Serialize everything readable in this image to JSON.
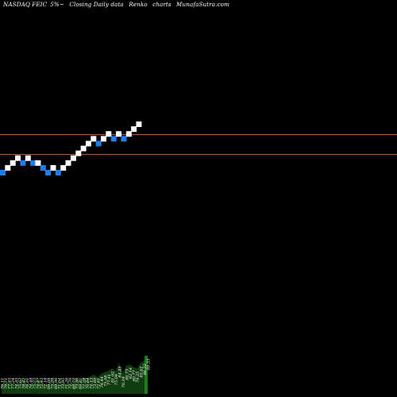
{
  "header": {
    "symbol": "NASDAQ FEIC",
    "change": "5%~",
    "desc": "Closing Daily data",
    "chart_kind": "Renko",
    "suffix": "charts",
    "site": "MunafaSutra.com"
  },
  "colors": {
    "background": "#000000",
    "up_brick": "#ffffff",
    "down_brick": "#1e7df0",
    "ref_line": "#c8642a",
    "volume_fill": "#0f3d0f",
    "volume_highlight": "#1d7a1d",
    "label_text": "#ffffff"
  },
  "chart_data": {
    "type": "renko",
    "title": "NASDAQ FEIC 5%~ Closing Daily data Renko charts MunafaSutra.com",
    "bricks": [
      {
        "dir": "down",
        "level": 0
      },
      {
        "dir": "up",
        "level": 1
      },
      {
        "dir": "up",
        "level": 2
      },
      {
        "dir": "up",
        "level": 3
      },
      {
        "dir": "down",
        "level": 2
      },
      {
        "dir": "up",
        "level": 3
      },
      {
        "dir": "down",
        "level": 2
      },
      {
        "dir": "up",
        "level": 2
      },
      {
        "dir": "down",
        "level": 1
      },
      {
        "dir": "down",
        "level": 0
      },
      {
        "dir": "up",
        "level": 1
      },
      {
        "dir": "down",
        "level": 0
      },
      {
        "dir": "up",
        "level": 1
      },
      {
        "dir": "up",
        "level": 2
      },
      {
        "dir": "up",
        "level": 3
      },
      {
        "dir": "up",
        "level": 4
      },
      {
        "dir": "up",
        "level": 5
      },
      {
        "dir": "up",
        "level": 6
      },
      {
        "dir": "up",
        "level": 7
      },
      {
        "dir": "down",
        "level": 6
      },
      {
        "dir": "up",
        "level": 7
      },
      {
        "dir": "up",
        "level": 8
      },
      {
        "dir": "down",
        "level": 7
      },
      {
        "dir": "up",
        "level": 8
      },
      {
        "dir": "down",
        "level": 7
      },
      {
        "dir": "up",
        "level": 8
      },
      {
        "dir": "up",
        "level": 9
      },
      {
        "dir": "up",
        "level": 10
      }
    ],
    "reference_lines": [
      {
        "level": 7.85
      },
      {
        "level": 3.75
      }
    ],
    "volume_labels": [
      "76.11",
      "79.71",
      "77.45",
      "77.24",
      "74.83",
      "75.62",
      "78.42",
      "76.91",
      "74.48",
      "75.75",
      "74.47",
      "72.42",
      "72.18",
      "69.08",
      "75.28",
      "69.96",
      "71.04",
      "73.95",
      "71.26",
      "72.76",
      "68.74",
      "73.56",
      "69.81",
      "72.28",
      "70.64",
      "74.13",
      "73.69",
      "72.61",
      "74.44",
      "75.98",
      "77.41",
      "81.92",
      "75.04",
      "84.45",
      "70.34",
      "80.73",
      "82.14",
      "80.77",
      "79.25",
      "85.62",
      "86.32",
      "89.53"
    ],
    "volume_values": [
      7,
      10,
      9,
      9,
      8,
      9,
      12,
      8,
      8,
      9,
      11,
      10,
      8,
      7,
      12,
      8,
      9,
      10,
      8,
      9,
      9,
      12,
      10,
      13,
      12,
      14,
      15,
      13,
      16,
      17,
      18,
      20,
      18,
      24,
      16,
      22,
      23,
      21,
      20,
      24,
      26,
      30
    ]
  }
}
